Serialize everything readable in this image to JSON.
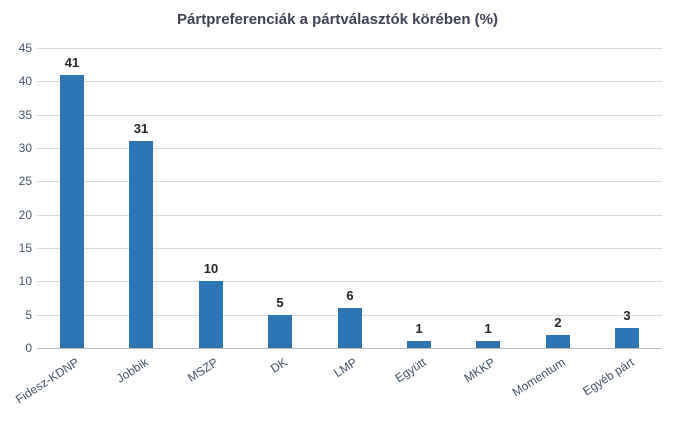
{
  "chart_data": {
    "type": "bar",
    "title": "Pártpreferenciák a pártválasztók körében (%)",
    "categories": [
      "Fidesz-KDNP",
      "Jobbik",
      "MSZP",
      "DK",
      "LMP",
      "Együtt",
      "MKKP",
      "Momentum",
      "Egyéb párt"
    ],
    "values": [
      41,
      31,
      10,
      5,
      6,
      1,
      1,
      2,
      3
    ],
    "data_labels": [
      "41",
      "31",
      "10",
      "5",
      "6",
      "1",
      "1",
      "2",
      "3"
    ],
    "xlabel": "",
    "ylabel": "",
    "ylim": [
      0,
      45
    ],
    "ytick_step": 5,
    "ytick_labels": [
      "0",
      "5",
      "10",
      "15",
      "20",
      "25",
      "30",
      "35",
      "40",
      "45"
    ],
    "grid": true,
    "legend": false,
    "colors": {
      "bar": "#2E75B6",
      "gridline": "#D9D9D9",
      "axis_line": "#BFBFBF",
      "title_text": "#3F4254",
      "tick_text": "#44546A",
      "data_label_text": "#262626",
      "background": "#FFFFFF"
    }
  }
}
